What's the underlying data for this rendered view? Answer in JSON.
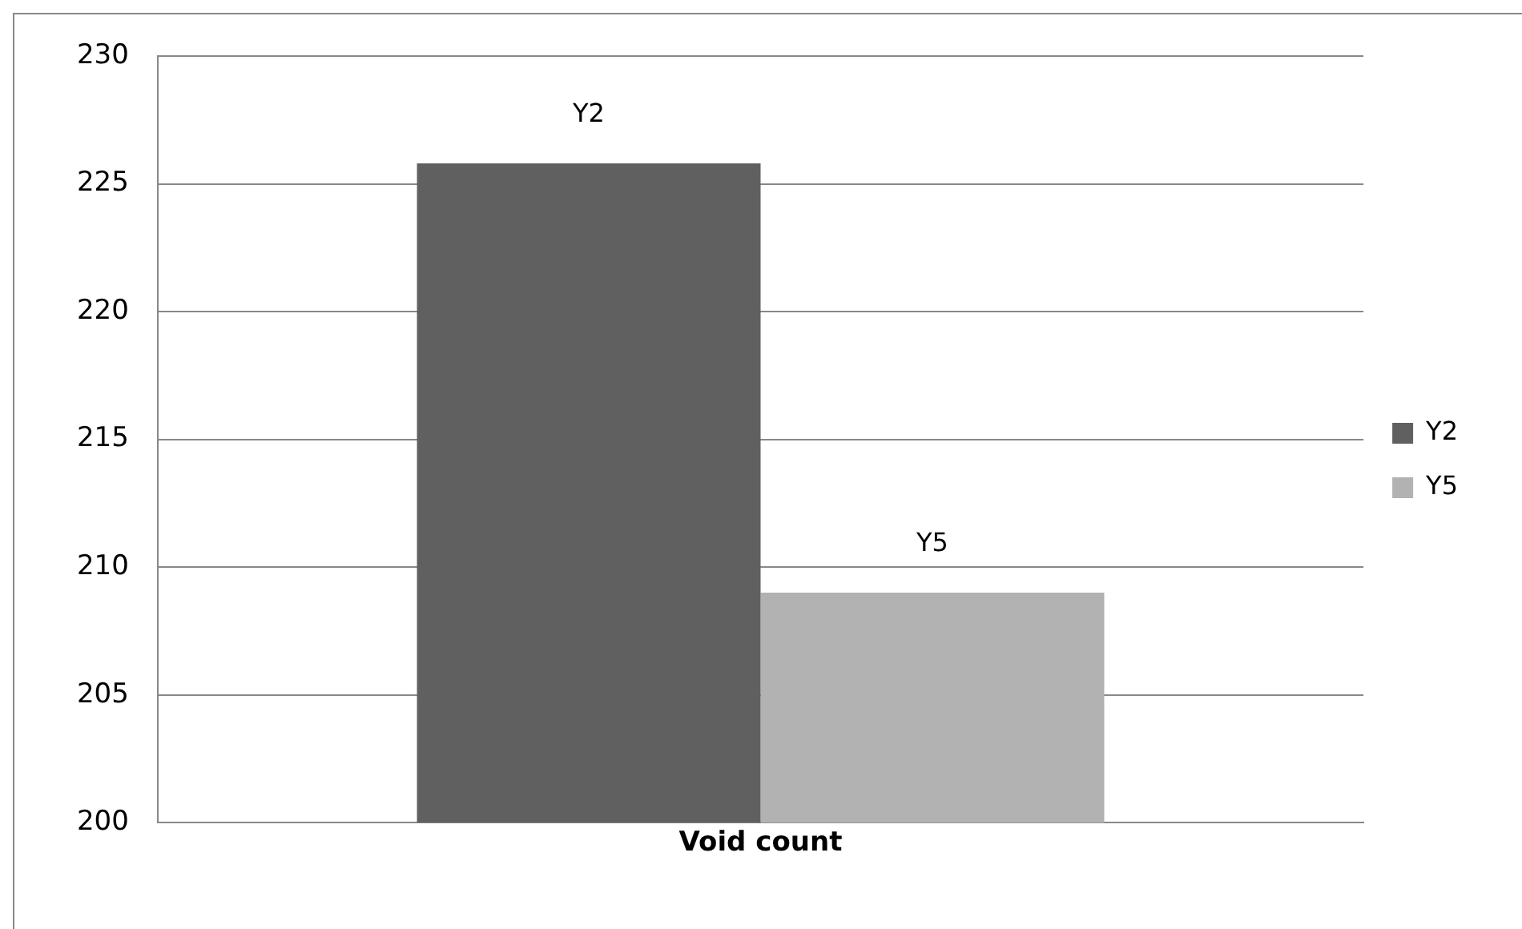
{
  "chart_data": {
    "type": "bar",
    "categories": [
      "Void count"
    ],
    "series": [
      {
        "name": "Y2",
        "color": "#606060",
        "values": [
          225.8
        ],
        "value_labels": [
          "Y2"
        ]
      },
      {
        "name": "Y5",
        "color": "#b2b2b2",
        "values": [
          209
        ],
        "value_labels": [
          "Y5"
        ]
      }
    ],
    "ylim": [
      200,
      230
    ],
    "yticks": [
      200,
      205,
      210,
      215,
      220,
      225,
      230
    ],
    "grid": "y",
    "legend": "right"
  }
}
